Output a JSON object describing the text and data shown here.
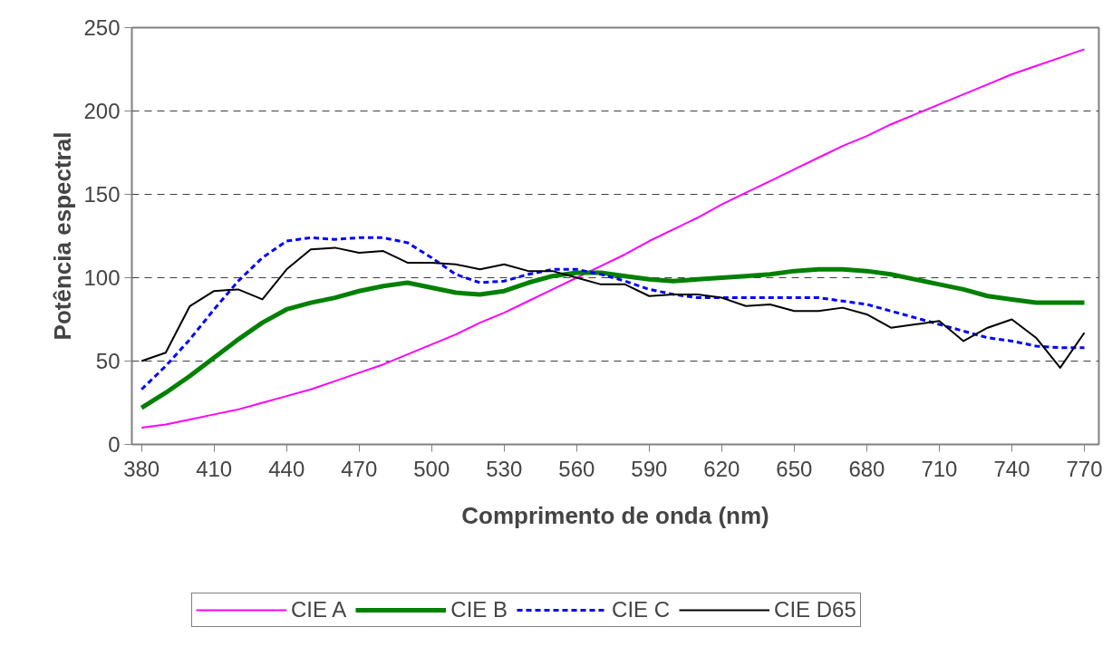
{
  "chart_data": {
    "type": "line",
    "xlabel": "Comprimento de onda (nm)",
    "ylabel": "Potência espectral",
    "x": [
      380,
      390,
      400,
      410,
      420,
      430,
      440,
      450,
      460,
      470,
      480,
      490,
      500,
      510,
      520,
      530,
      540,
      550,
      560,
      570,
      580,
      590,
      600,
      610,
      620,
      630,
      640,
      650,
      660,
      670,
      680,
      690,
      700,
      710,
      720,
      730,
      740,
      750,
      760,
      770
    ],
    "series": [
      {
        "name": "CIE A",
        "color": "#ff00ff",
        "line_style": "solid",
        "values": [
          10,
          12,
          15,
          18,
          21,
          25,
          29,
          33,
          38,
          43,
          48,
          54,
          60,
          66,
          73,
          79,
          86,
          93,
          100,
          107,
          114,
          122,
          129,
          136,
          144,
          151,
          158,
          165,
          172,
          179,
          185,
          192,
          198,
          204,
          210,
          216,
          222,
          227,
          232,
          237
        ]
      },
      {
        "name": "CIE B",
        "color": "#008000",
        "line_style": "solid",
        "values": [
          22,
          31,
          41,
          52,
          63,
          73,
          81,
          85,
          88,
          92,
          95,
          97,
          94,
          91,
          90,
          92,
          97,
          101,
          103,
          103,
          101,
          99,
          98,
          99,
          100,
          101,
          102,
          104,
          105,
          105,
          104,
          102,
          99,
          96,
          93,
          89,
          87,
          85,
          85,
          85
        ]
      },
      {
        "name": "CIE C",
        "color": "#0000ff",
        "line_style": "dashed",
        "values": [
          33,
          47,
          63,
          81,
          98,
          112,
          122,
          124,
          123,
          124,
          124,
          121,
          112,
          102,
          97,
          98,
          102,
          105,
          105,
          102,
          98,
          93,
          90,
          88,
          88,
          88,
          88,
          88,
          88,
          86,
          84,
          80,
          76,
          72,
          68,
          64,
          62,
          59,
          58,
          58
        ]
      },
      {
        "name": "CIE D65",
        "color": "#000000",
        "line_style": "solid",
        "values": [
          50,
          55,
          83,
          92,
          93,
          87,
          105,
          117,
          118,
          115,
          116,
          109,
          109,
          108,
          105,
          108,
          104,
          104,
          100,
          96,
          96,
          89,
          90,
          90,
          88,
          83,
          84,
          80,
          80,
          82,
          78,
          70,
          72,
          74,
          62,
          70,
          75,
          64,
          46,
          67
        ]
      }
    ],
    "xlim": [
      376,
      776
    ],
    "xticks": [
      380,
      410,
      440,
      470,
      500,
      530,
      560,
      590,
      620,
      650,
      680,
      710,
      740,
      770
    ],
    "ylim": [
      0,
      250
    ],
    "yticks": [
      0,
      50,
      100,
      150,
      200,
      250
    ],
    "grid": "y",
    "legend": "bottom",
    "marker": "none"
  }
}
